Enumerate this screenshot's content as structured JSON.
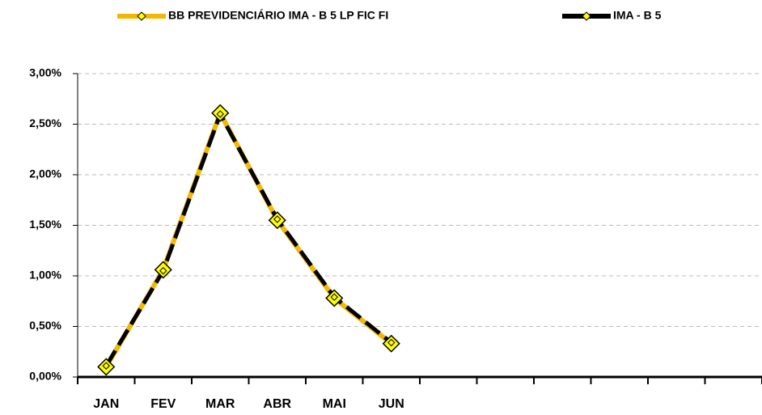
{
  "chart_data": {
    "type": "line",
    "categories": [
      "JAN",
      "FEV",
      "MAR",
      "ABR",
      "MAI",
      "JUN",
      null,
      null,
      null,
      null,
      null,
      null
    ],
    "series": [
      {
        "name": "BB PREVIDENCIÁRIO IMA - B 5 LP FIC FI",
        "color": "#f5b800",
        "marker_color": "#ffff00",
        "values": [
          0.1,
          1.06,
          2.61,
          1.55,
          0.78,
          0.33,
          null,
          null,
          null,
          null,
          null,
          null
        ]
      },
      {
        "name": "IMA - B 5",
        "color": "#000000",
        "marker_color": "#ffff00",
        "values": [
          0.11,
          1.05,
          2.6,
          1.56,
          0.79,
          0.34,
          null,
          null,
          null,
          null,
          null,
          null
        ]
      }
    ],
    "ylim": [
      0,
      3
    ],
    "yticks": [
      {
        "value": 0,
        "label": "0,00%"
      },
      {
        "value": 0.5,
        "label": "0,50%"
      },
      {
        "value": 1,
        "label": "1,00%"
      },
      {
        "value": 1.5,
        "label": "1,50%"
      },
      {
        "value": 2,
        "label": "2,00%"
      },
      {
        "value": 2.5,
        "label": "2,50%"
      },
      {
        "value": 3,
        "label": "3,00%"
      }
    ],
    "grid": true,
    "legend": "top"
  }
}
